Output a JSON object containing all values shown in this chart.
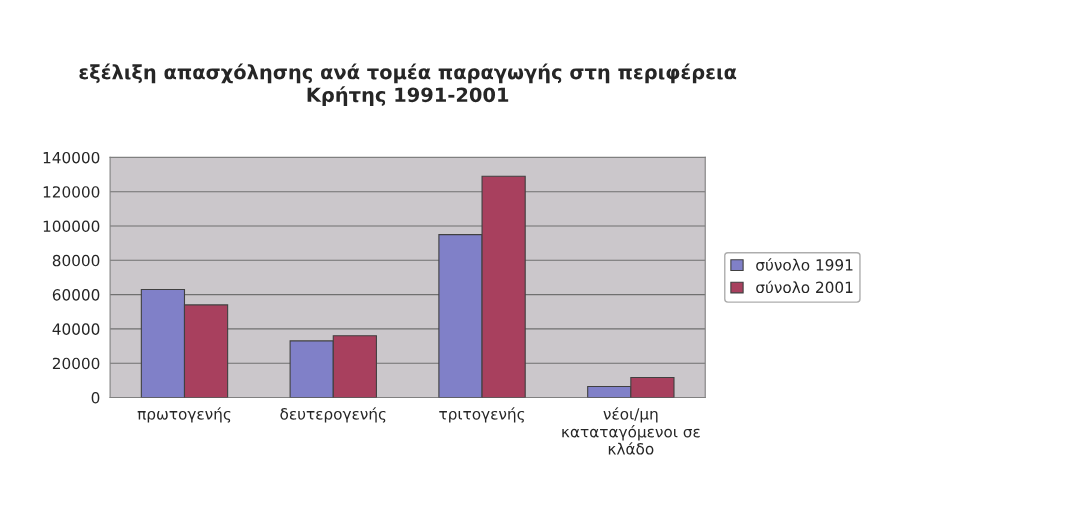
{
  "chart_data": {
    "type": "bar",
    "title": "εξέλιξη απασχόλησης ανά τομέα παραγωγής στη περιφέρεια\nΚρήτης 1991-2001",
    "categories": [
      "πρωτογενής",
      "δευτερογενής",
      "τριτογενής",
      "νέοι/μη\nκαταταγόμενοι σε\nκλάδο"
    ],
    "series": [
      {
        "name": "σύνολο 1991",
        "color": "#8080c8",
        "values": [
          63000,
          33000,
          95000,
          6400
        ]
      },
      {
        "name": "σύνολο 2001",
        "color": "#a8405e",
        "values": [
          54000,
          36000,
          129000,
          11700
        ]
      }
    ],
    "ylim": [
      0,
      140000
    ],
    "yticks": [
      0,
      20000,
      40000,
      60000,
      80000,
      100000,
      120000,
      140000
    ],
    "grid": "y",
    "legend": "right"
  }
}
